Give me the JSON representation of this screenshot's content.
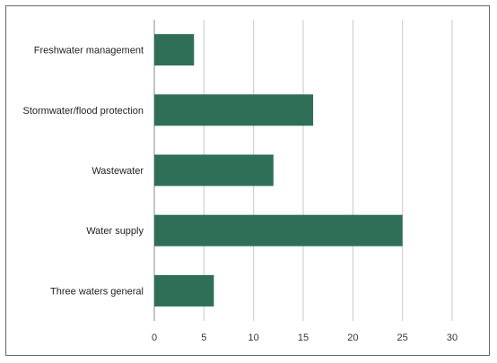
{
  "chart_data": {
    "type": "bar",
    "orientation": "horizontal",
    "categories": [
      "Freshwater management",
      "Stormwater/flood protection",
      "Wastewater",
      "Water supply",
      "Three waters general"
    ],
    "values": [
      4,
      16,
      12,
      25,
      6
    ],
    "xlim": [
      0,
      30
    ],
    "xticks": [
      "0",
      "5",
      "10",
      "15",
      "20",
      "25",
      "30"
    ],
    "grid": true,
    "bar_color": "#2f6f57"
  }
}
